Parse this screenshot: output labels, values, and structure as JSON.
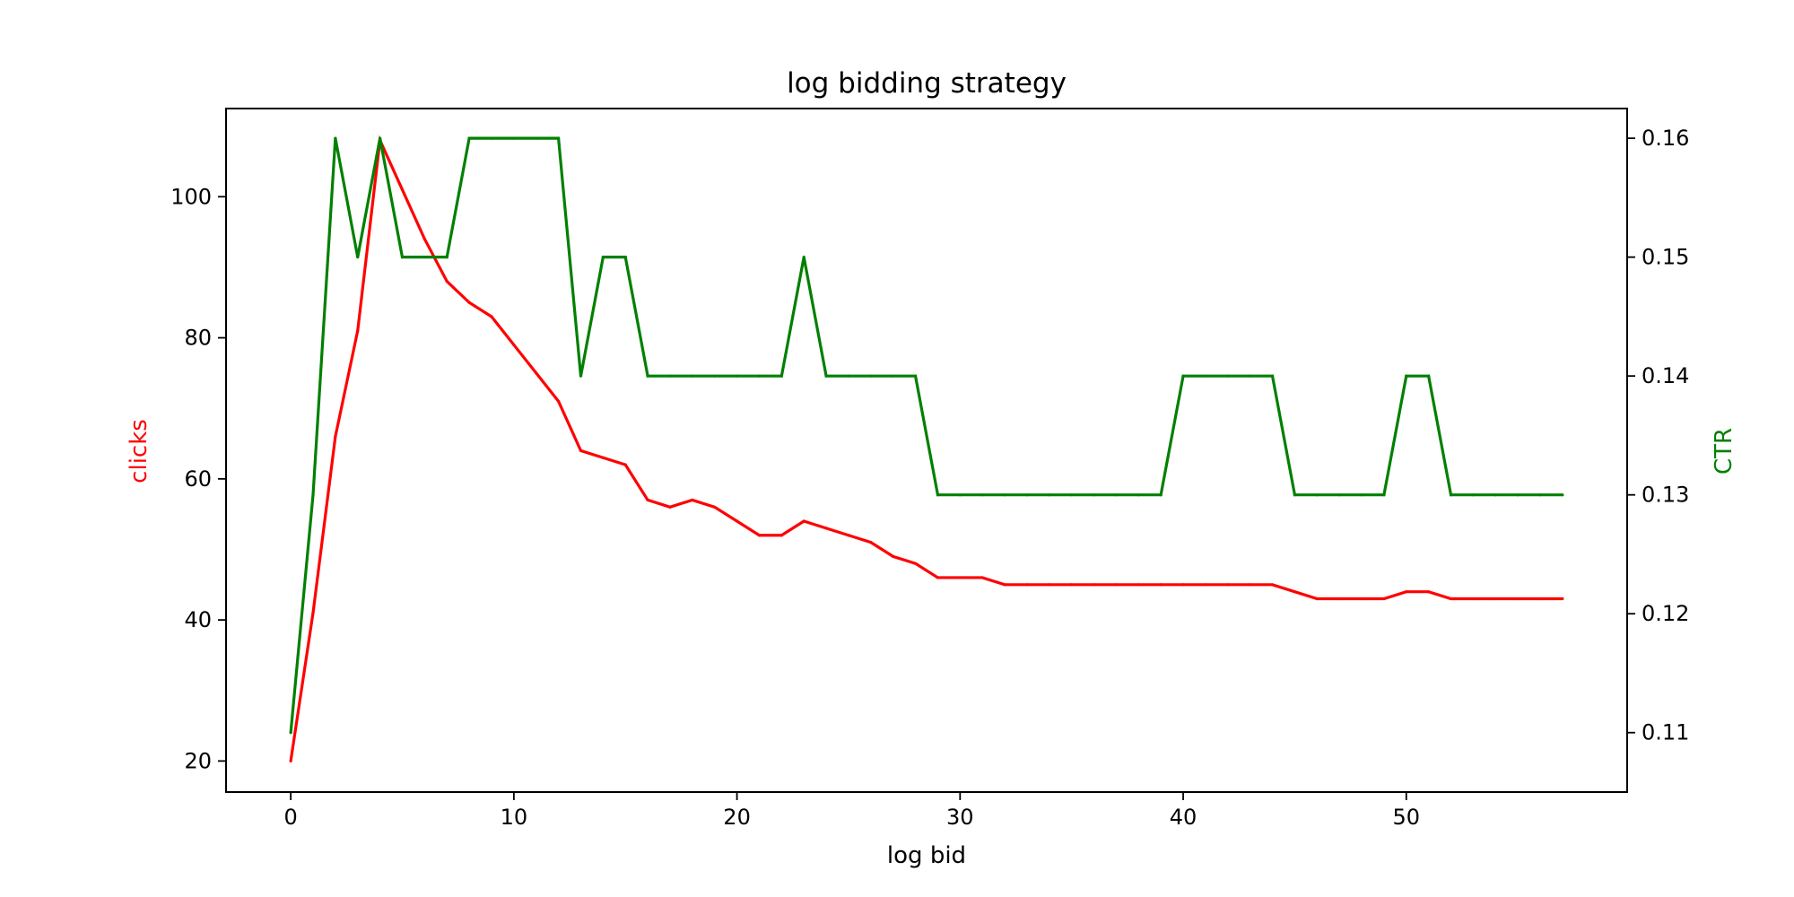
{
  "chart_data": {
    "type": "line",
    "title": "log bidding strategy",
    "xlabel": "log bid",
    "ylabel_left": "clicks",
    "ylabel_right": "CTR",
    "xlim": [
      -2.9,
      59.9
    ],
    "ylim_left": [
      15.6,
      112.5
    ],
    "ylim_right": [
      0.105,
      0.1625
    ],
    "x_ticks": [
      0,
      10,
      20,
      30,
      40,
      50
    ],
    "y_ticks_left": [
      20,
      40,
      60,
      80,
      100
    ],
    "y_ticks_right": [
      0.11,
      0.12,
      0.13,
      0.14,
      0.15,
      0.16
    ],
    "grid": false,
    "x": [
      0,
      1,
      2,
      3,
      4,
      5,
      6,
      7,
      8,
      9,
      10,
      11,
      12,
      13,
      14,
      15,
      16,
      17,
      18,
      19,
      20,
      21,
      22,
      23,
      24,
      25,
      26,
      27,
      28,
      29,
      30,
      31,
      32,
      33,
      34,
      35,
      36,
      37,
      38,
      39,
      40,
      41,
      42,
      43,
      44,
      45,
      46,
      47,
      48,
      49,
      50,
      51,
      52,
      53,
      54,
      55,
      56,
      57
    ],
    "series": [
      {
        "axis": "left",
        "color": "#ff0000",
        "values": [
          20,
          41,
          66,
          81,
          108,
          101,
          94,
          88,
          85,
          83,
          79,
          75,
          71,
          64,
          63,
          62,
          57,
          56,
          57,
          56,
          54,
          52,
          52,
          54,
          53,
          52,
          51,
          49,
          48,
          46,
          46,
          46,
          45,
          45,
          45,
          45,
          45,
          45,
          45,
          45,
          45,
          45,
          45,
          45,
          45,
          44,
          43,
          43,
          43,
          43,
          44,
          44,
          43,
          43,
          43,
          43,
          43,
          43
        ]
      },
      {
        "axis": "right",
        "color": "#008000",
        "values": [
          0.11,
          0.13,
          0.16,
          0.15,
          0.16,
          0.15,
          0.15,
          0.15,
          0.16,
          0.16,
          0.16,
          0.16,
          0.16,
          0.14,
          0.15,
          0.15,
          0.14,
          0.14,
          0.14,
          0.14,
          0.14,
          0.14,
          0.14,
          0.15,
          0.14,
          0.14,
          0.14,
          0.14,
          0.14,
          0.13,
          0.13,
          0.13,
          0.13,
          0.13,
          0.13,
          0.13,
          0.13,
          0.13,
          0.13,
          0.13,
          0.14,
          0.14,
          0.14,
          0.14,
          0.14,
          0.13,
          0.13,
          0.13,
          0.13,
          0.13,
          0.14,
          0.14,
          0.13,
          0.13,
          0.13,
          0.13,
          0.13,
          0.13
        ]
      }
    ]
  }
}
